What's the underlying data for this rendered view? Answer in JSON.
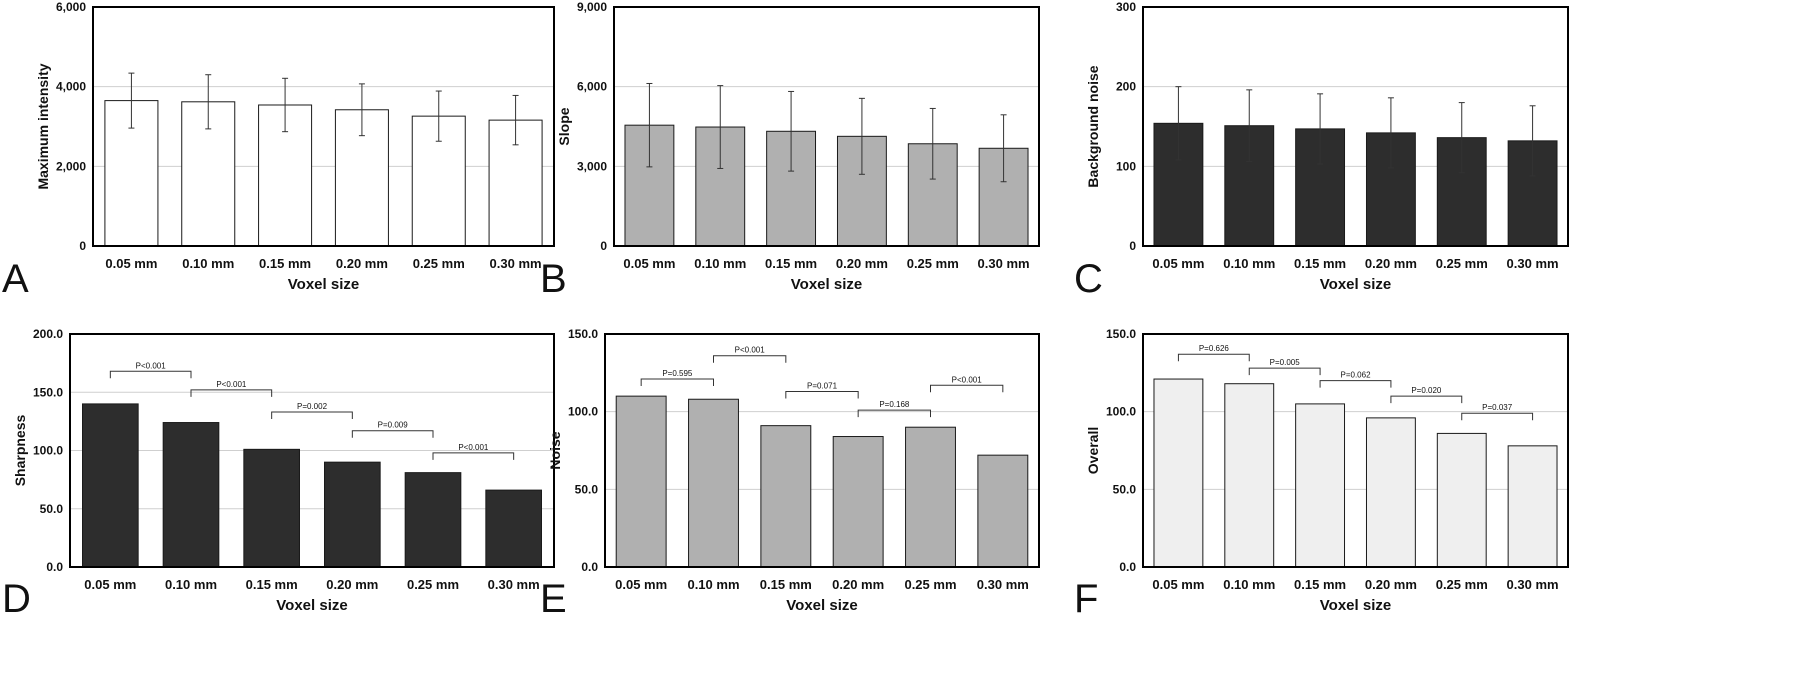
{
  "colors": {
    "white_fill": "#ffffff",
    "gray_fill": "#b0b0b0",
    "black_fill": "#2d2d2d",
    "light_fill": "#efefef",
    "axis": "#000000",
    "grid": "#cfcfcf"
  },
  "chart_data": [
    {
      "panel": "A",
      "type": "bar",
      "categories": [
        "0.05 mm",
        "0.10 mm",
        "0.15 mm",
        "0.20 mm",
        "0.25 mm",
        "0.30 mm"
      ],
      "values": [
        3650,
        3620,
        3540,
        3420,
        3260,
        3160
      ],
      "errors": [
        690,
        680,
        670,
        650,
        630,
        620
      ],
      "ylabel": "Maximum intensity",
      "xlabel": "Voxel size",
      "ylim": [
        0,
        6000
      ],
      "yticks": [
        0,
        2000,
        4000,
        6000
      ],
      "ytick_labels": [
        "0",
        "2,000",
        "4,000",
        "6,000"
      ],
      "fill": "white_fill",
      "grid": true,
      "comparisons": []
    },
    {
      "panel": "B",
      "type": "bar",
      "categories": [
        "0.05 mm",
        "0.10 mm",
        "0.15 mm",
        "0.20 mm",
        "0.25 mm",
        "0.30 mm"
      ],
      "values": [
        4550,
        4480,
        4320,
        4130,
        3850,
        3680
      ],
      "errors": [
        1570,
        1560,
        1500,
        1430,
        1330,
        1260
      ],
      "ylabel": "Slope",
      "xlabel": "Voxel size",
      "ylim": [
        0,
        9000
      ],
      "yticks": [
        0,
        3000,
        6000,
        9000
      ],
      "ytick_labels": [
        "0",
        "3,000",
        "6,000",
        "9,000"
      ],
      "fill": "gray_fill",
      "grid": true,
      "comparisons": []
    },
    {
      "panel": "C",
      "type": "bar",
      "categories": [
        "0.05 mm",
        "0.10 mm",
        "0.15 mm",
        "0.20 mm",
        "0.25 mm",
        "0.30 mm"
      ],
      "values": [
        154,
        151,
        147,
        142,
        136,
        132
      ],
      "errors": [
        46,
        45,
        44,
        44,
        44,
        44
      ],
      "ylabel": "Background noise",
      "xlabel": "Voxel size",
      "ylim": [
        0,
        300
      ],
      "yticks": [
        0,
        100,
        200,
        300
      ],
      "ytick_labels": [
        "0",
        "100",
        "200",
        "300"
      ],
      "fill": "black_fill",
      "grid": true,
      "comparisons": []
    },
    {
      "panel": "D",
      "type": "bar",
      "categories": [
        "0.05 mm",
        "0.10 mm",
        "0.15 mm",
        "0.20 mm",
        "0.25 mm",
        "0.30 mm"
      ],
      "values": [
        140,
        124,
        101,
        90,
        81,
        66
      ],
      "errors": [],
      "ylabel": "Sharpness",
      "xlabel": "Voxel size",
      "ylim": [
        0,
        200
      ],
      "yticks": [
        0,
        50,
        100,
        150,
        200
      ],
      "ytick_labels": [
        "0.0",
        "50.0",
        "100.0",
        "150.0",
        "200.0"
      ],
      "fill": "black_fill",
      "grid": true,
      "comparisons": [
        {
          "from": 0,
          "to": 1,
          "level": 168,
          "label": "P<0.001"
        },
        {
          "from": 1,
          "to": 2,
          "level": 152,
          "label": "P<0.001"
        },
        {
          "from": 2,
          "to": 3,
          "level": 133,
          "label": "P=0.002"
        },
        {
          "from": 3,
          "to": 4,
          "level": 117,
          "label": "P=0.009"
        },
        {
          "from": 4,
          "to": 5,
          "level": 98,
          "label": "P<0.001"
        }
      ]
    },
    {
      "panel": "E",
      "type": "bar",
      "categories": [
        "0.05 mm",
        "0.10 mm",
        "0.15 mm",
        "0.20 mm",
        "0.25 mm",
        "0.30 mm"
      ],
      "values": [
        110,
        108,
        91,
        84,
        90,
        72
      ],
      "errors": [],
      "ylabel": "Noise",
      "xlabel": "Voxel size",
      "ylim": [
        0,
        150
      ],
      "yticks": [
        0,
        50,
        100,
        150
      ],
      "ytick_labels": [
        "0.0",
        "50.0",
        "100.0",
        "150.0"
      ],
      "fill": "gray_fill",
      "grid": true,
      "comparisons": [
        {
          "from": 0,
          "to": 1,
          "level": 121,
          "label": "P=0.595"
        },
        {
          "from": 1,
          "to": 2,
          "level": 136,
          "label": "P<0.001"
        },
        {
          "from": 2,
          "to": 3,
          "level": 113,
          "label": "P=0.071"
        },
        {
          "from": 3,
          "to": 4,
          "level": 101,
          "label": "P=0.168"
        },
        {
          "from": 4,
          "to": 5,
          "level": 117,
          "label": "P<0.001"
        }
      ]
    },
    {
      "panel": "F",
      "type": "bar",
      "categories": [
        "0.05 mm",
        "0.10 mm",
        "0.15 mm",
        "0.20 mm",
        "0.25 mm",
        "0.30 mm"
      ],
      "values": [
        121,
        118,
        105,
        96,
        86,
        78
      ],
      "errors": [],
      "ylabel": "Overall",
      "xlabel": "Voxel size",
      "ylim": [
        0,
        150
      ],
      "yticks": [
        0,
        50,
        100,
        150
      ],
      "ytick_labels": [
        "0.0",
        "50.0",
        "100.0",
        "150.0"
      ],
      "fill": "light_fill",
      "grid": true,
      "comparisons": [
        {
          "from": 0,
          "to": 1,
          "level": 137,
          "label": "P=0.626"
        },
        {
          "from": 1,
          "to": 2,
          "level": 128,
          "label": "P=0.005"
        },
        {
          "from": 2,
          "to": 3,
          "level": 120,
          "label": "P=0.062"
        },
        {
          "from": 3,
          "to": 4,
          "level": 110,
          "label": "P=0.020"
        },
        {
          "from": 4,
          "to": 5,
          "level": 99,
          "label": "P=0.037"
        }
      ]
    }
  ]
}
